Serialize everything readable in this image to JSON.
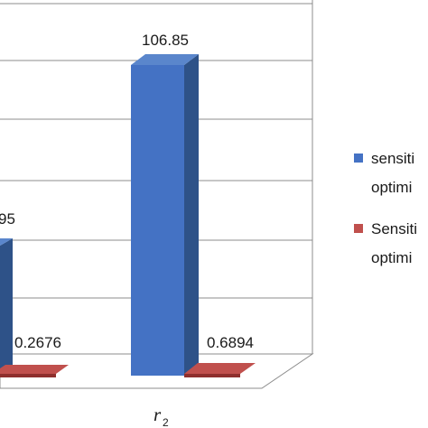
{
  "chart_data": {
    "type": "bar",
    "categories": [
      "",
      "r2"
    ],
    "series": [
      {
        "name": "sensiti\noptimi",
        "values": [
          null,
          106.85
        ],
        "color": "#4472C4"
      },
      {
        "name": "Sensiti\noptimi",
        "values": [
          null,
          0.6894
        ],
        "color": "#C0504D"
      }
    ],
    "data_labels": {
      "left_partial_blue": "95",
      "left_red": "0.2676",
      "r2_blue": "106.85",
      "r2_red": "0.6894"
    },
    "axis": {
      "category_label_main": "r",
      "category_label_sub": "2"
    },
    "legend": {
      "position": "right",
      "entries": [
        {
          "line1": "sensiti",
          "line2": "optimi",
          "color": "#4472C4"
        },
        {
          "line1": "Sensiti",
          "line2": "optimi",
          "color": "#C0504D"
        }
      ]
    },
    "grid": true,
    "bar_3d": true
  }
}
